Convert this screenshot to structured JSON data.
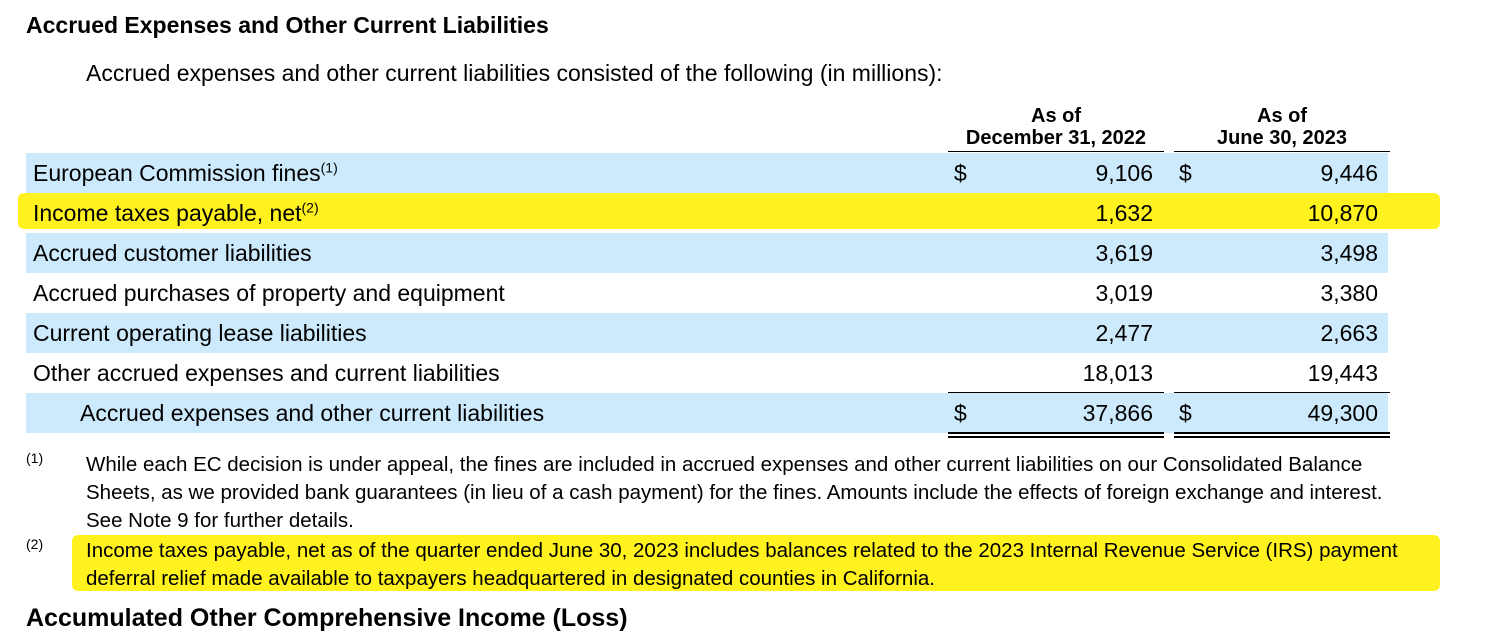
{
  "title": "Accrued Expenses and Other Current Liabilities",
  "intro": "Accrued expenses and other current liabilities consisted of the following (in millions):",
  "columns": [
    {
      "line1": "As of",
      "line2": "December 31, 2022"
    },
    {
      "line1": "As of",
      "line2": "June 30, 2023"
    }
  ],
  "currency_symbol": "$",
  "rows": [
    {
      "label": "European Commission fines",
      "note": "(1)",
      "v1": "9,106",
      "v2": "9,446"
    },
    {
      "label": "Income taxes payable, net",
      "note": "(2)",
      "v1": "1,632",
      "v2": "10,870"
    },
    {
      "label": "Accrued customer liabilities",
      "note": "",
      "v1": "3,619",
      "v2": "3,498"
    },
    {
      "label": "Accrued purchases of property and equipment",
      "note": "",
      "v1": "3,019",
      "v2": "3,380"
    },
    {
      "label": "Current operating lease liabilities",
      "note": "",
      "v1": "2,477",
      "v2": "2,663"
    },
    {
      "label": "Other accrued expenses and current liabilities",
      "note": "",
      "v1": "18,013",
      "v2": "19,443"
    },
    {
      "label": "Accrued expenses and other current liabilities",
      "note": "",
      "v1": "37,866",
      "v2": "49,300"
    }
  ],
  "footnotes": [
    {
      "mark": "(1)",
      "text": "While each EC decision is under appeal, the fines are included in accrued expenses and other current liabilities on our Consolidated Balance Sheets, as we provided bank guarantees (in lieu of a cash payment) for the fines. Amounts include the effects of foreign exchange and interest. See Note 9 for further details."
    },
    {
      "mark": "(2)",
      "text": "Income taxes payable, net as of the quarter ended June 30, 2023 includes balances related to the 2023 Internal Revenue Service (IRS) payment deferral relief made available to taxpayers headquartered in designated counties in California."
    }
  ],
  "next_heading_partial": "Accumulated Other Comprehensive Income (Loss)",
  "highlight_color": "#fff000",
  "row_shade_color": "#cdeafd"
}
